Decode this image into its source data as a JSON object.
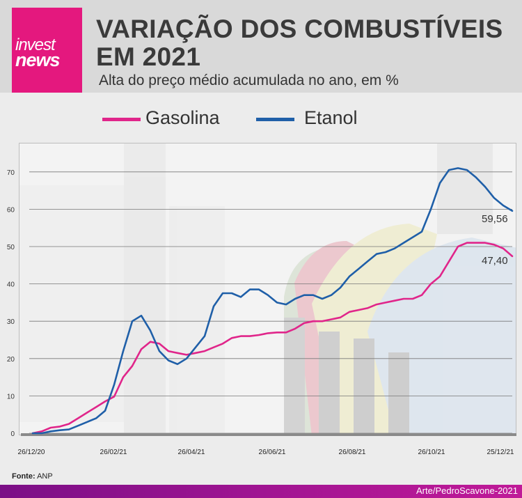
{
  "logo": {
    "line1": "invest",
    "line2": "news"
  },
  "header": {
    "title_line1": "VARIAÇÃO DOS COMBUSTÍVEIS",
    "title_line2": "EM 2021",
    "subtitle": "Alta do preço médio acumulada no ano, em %"
  },
  "source": {
    "label": "Fonte:",
    "value": "ANP"
  },
  "credit": "Arte/PedroScavone-2021",
  "colors": {
    "gasolina": "#e0258a",
    "etanol": "#1f5fa8",
    "brand": "#e4187e"
  },
  "chart_data": {
    "type": "line",
    "title": "VARIAÇÃO DOS COMBUSTÍVEIS EM 2021",
    "subtitle": "Alta do preço médio acumulada no ano, em %",
    "ylim": [
      0,
      75
    ],
    "yticks": [
      0,
      10,
      20,
      30,
      40,
      50,
      60,
      70
    ],
    "xtick_labels": [
      "26/12/20",
      "26/02/21",
      "26/04/21",
      "26/06/21",
      "26/08/21",
      "26/10/21",
      "25/12/21"
    ],
    "x_start_label": "26/12/20",
    "x_end_label": "25/12/21",
    "grid": true,
    "legend_position": "top",
    "series": [
      {
        "name": "Gasolina",
        "end_label": "47,40",
        "values": [
          0,
          0.5,
          1.5,
          1.8,
          2.5,
          4.0,
          5.5,
          7.0,
          8.5,
          9.8,
          15.0,
          18.0,
          22.5,
          24.5,
          24.0,
          22.0,
          21.5,
          21.0,
          21.5,
          22.0,
          23.0,
          24.0,
          25.5,
          26.0,
          26.0,
          26.3,
          26.8,
          27.0,
          27.0,
          28.0,
          29.5,
          30.0,
          30.0,
          30.5,
          31.0,
          32.5,
          33.0,
          33.5,
          34.5,
          35.0,
          35.5,
          36.0,
          36.0,
          37.0,
          40.0,
          42.0,
          46.0,
          50.0,
          51.0,
          51.0,
          51.0,
          50.5,
          49.5,
          47.4
        ]
      },
      {
        "name": "Etanol",
        "end_label": "59,56",
        "values": [
          0,
          0,
          0.5,
          0.8,
          1.0,
          2.0,
          3.0,
          4.0,
          6.0,
          13.0,
          22.0,
          30.0,
          31.5,
          27.5,
          22.0,
          19.5,
          18.5,
          20.0,
          23.0,
          26.0,
          34.0,
          37.5,
          37.5,
          36.5,
          38.5,
          38.5,
          37.0,
          35.0,
          34.5,
          36.0,
          37.0,
          37.0,
          36.0,
          37.0,
          39.0,
          42.0,
          44.0,
          46.0,
          48.0,
          48.5,
          49.5,
          51.0,
          52.5,
          54.0,
          60.0,
          67.0,
          70.5,
          71.0,
          70.5,
          68.5,
          66.0,
          63.0,
          61.0,
          59.56
        ]
      }
    ]
  }
}
